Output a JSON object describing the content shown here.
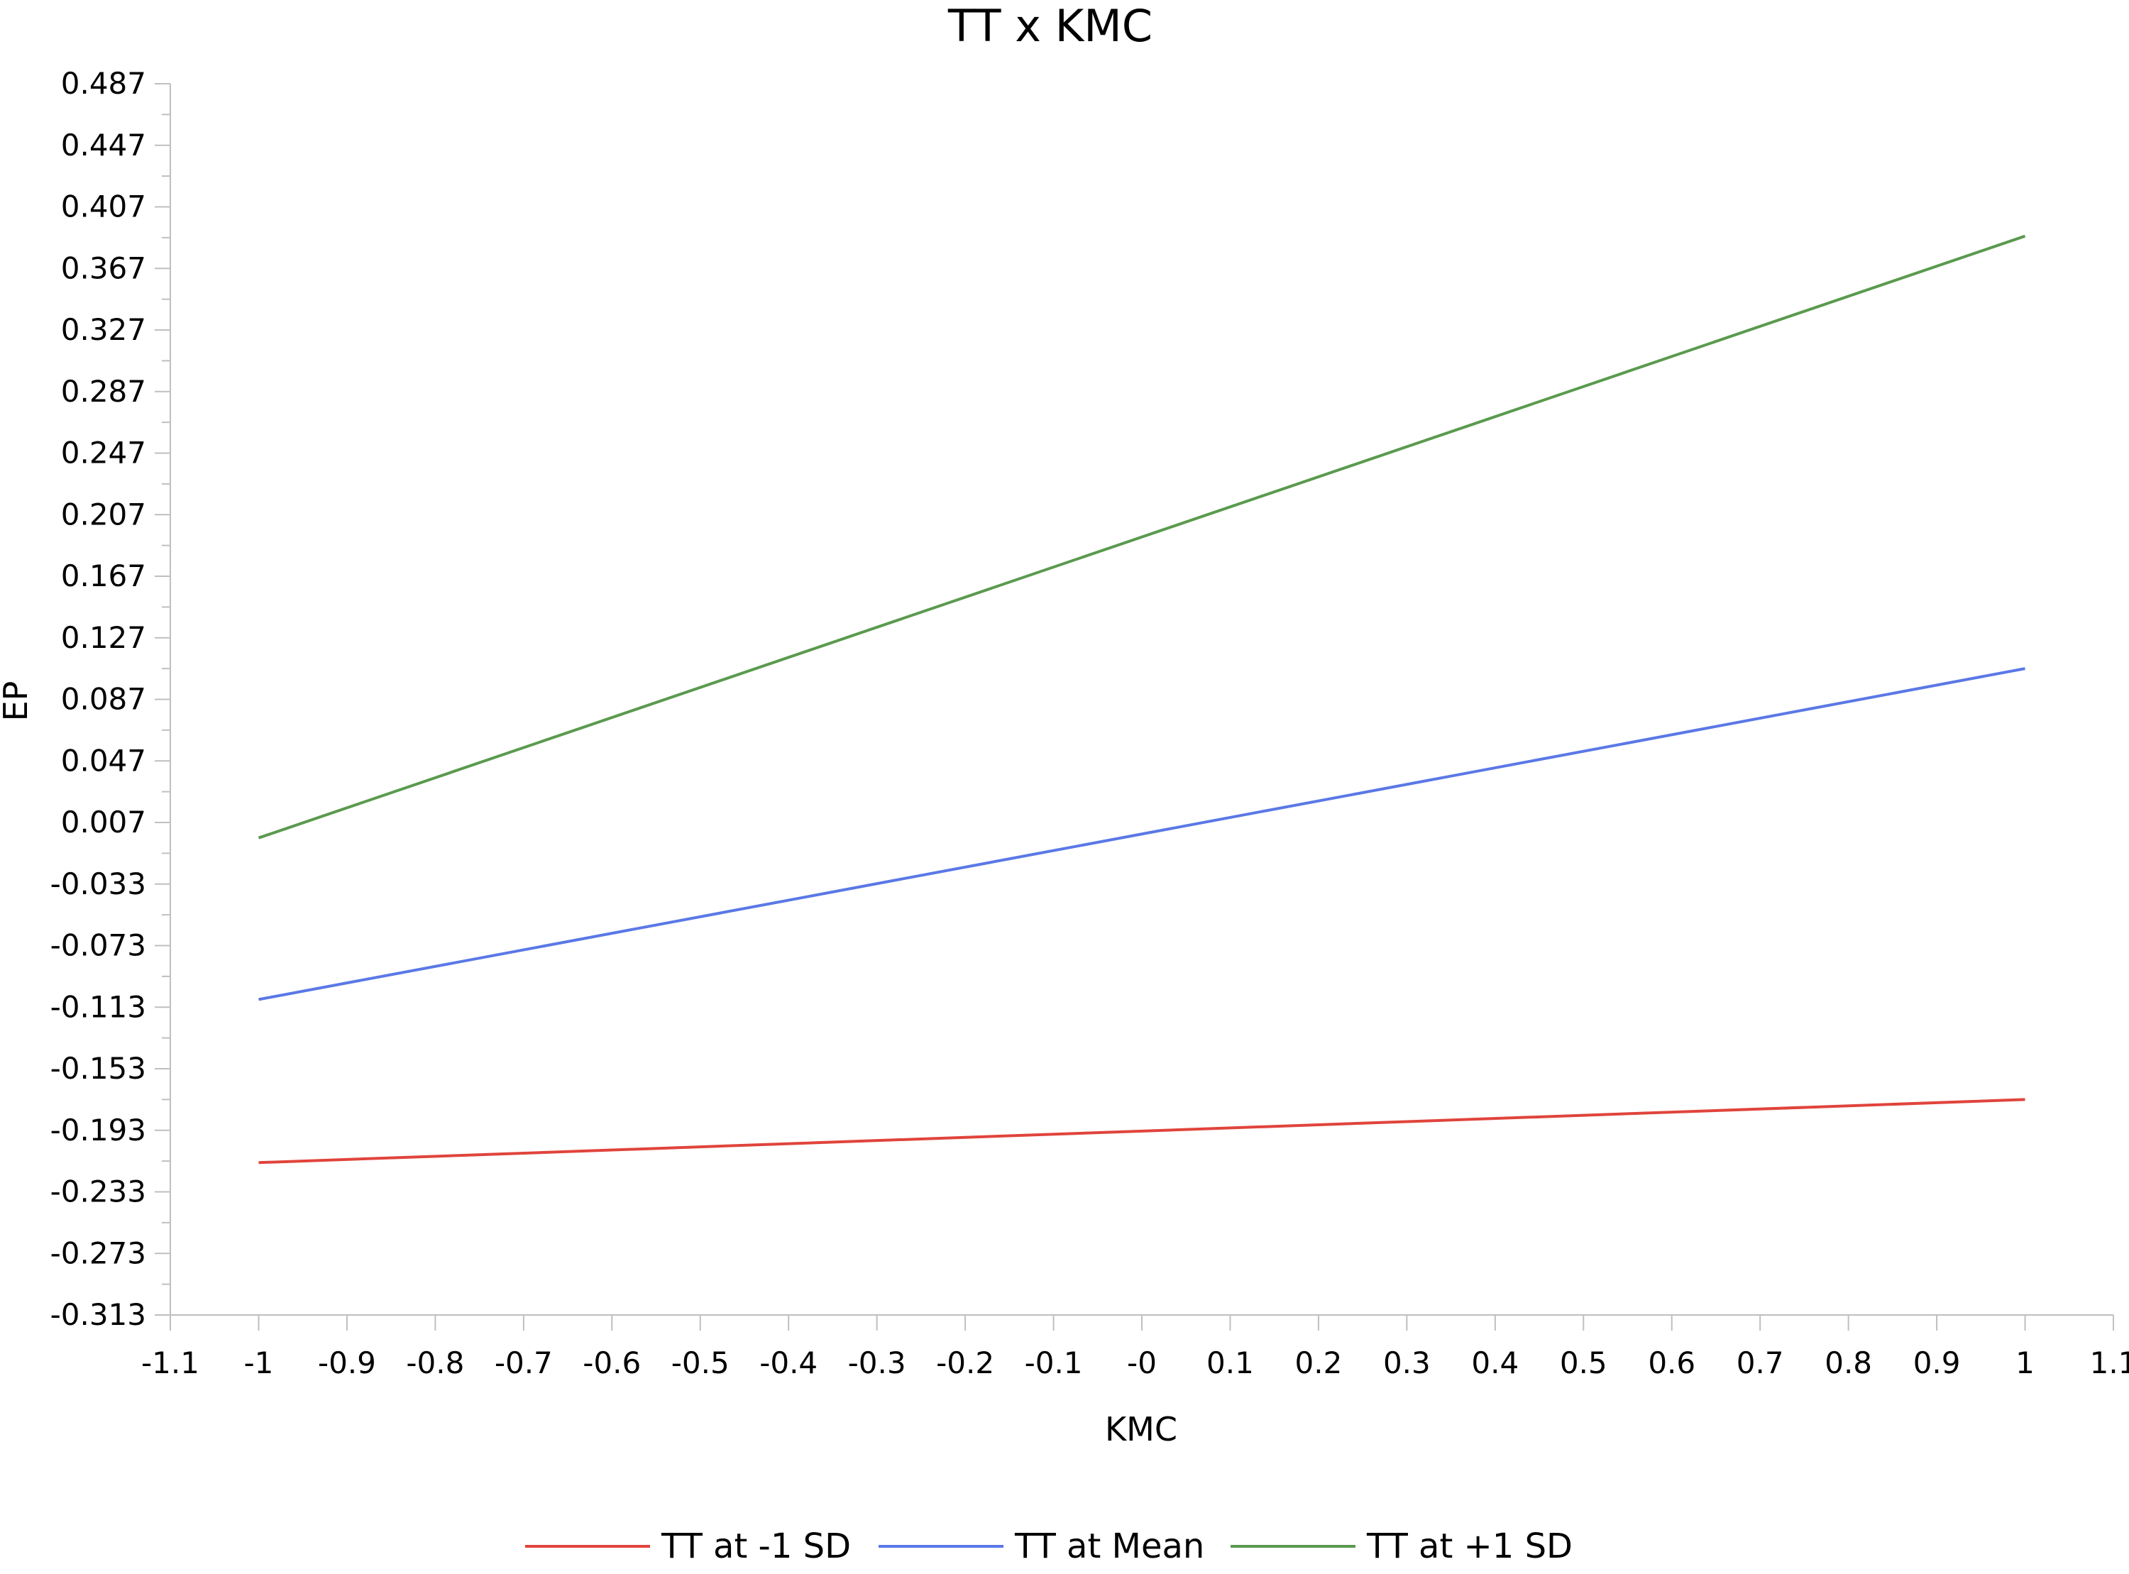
{
  "chart_data": {
    "type": "line",
    "title": "TT x KMC",
    "xlabel": "KMC",
    "ylabel": "EP",
    "xlim": [
      -1.1,
      1.1
    ],
    "ylim": [
      -0.313,
      0.487
    ],
    "x_ticks": [
      "-1.1",
      "-1",
      "-0.9",
      "-0.8",
      "-0.7",
      "-0.6",
      "-0.5",
      "-0.4",
      "-0.3",
      "-0.2",
      "-0.1",
      "-0",
      "0.1",
      "0.2",
      "0.3",
      "0.4",
      "0.5",
      "0.6",
      "0.7",
      "0.8",
      "0.9",
      "1",
      "1.1"
    ],
    "y_ticks": [
      "0.487",
      "0.447",
      "0.407",
      "0.367",
      "0.327",
      "0.287",
      "0.247",
      "0.207",
      "0.167",
      "0.127",
      "0.087",
      "0.047",
      "0.007",
      "-0.033",
      "-0.073",
      "-0.113",
      "-0.153",
      "-0.193",
      "-0.233",
      "-0.273",
      "-0.313"
    ],
    "grid": false,
    "legend_position": "bottom",
    "series": [
      {
        "name": "TT at -1 SD",
        "color": "#e0443c",
        "x": [
          -1,
          1
        ],
        "y": [
          -0.214,
          -0.173
        ]
      },
      {
        "name": "TT at Mean",
        "color": "#5a78e6",
        "x": [
          -1,
          1
        ],
        "y": [
          -0.108,
          0.107
        ]
      },
      {
        "name": "TT at +1 SD",
        "color": "#5a9a4e",
        "x": [
          -1,
          1
        ],
        "y": [
          -0.003,
          0.388
        ]
      }
    ]
  }
}
